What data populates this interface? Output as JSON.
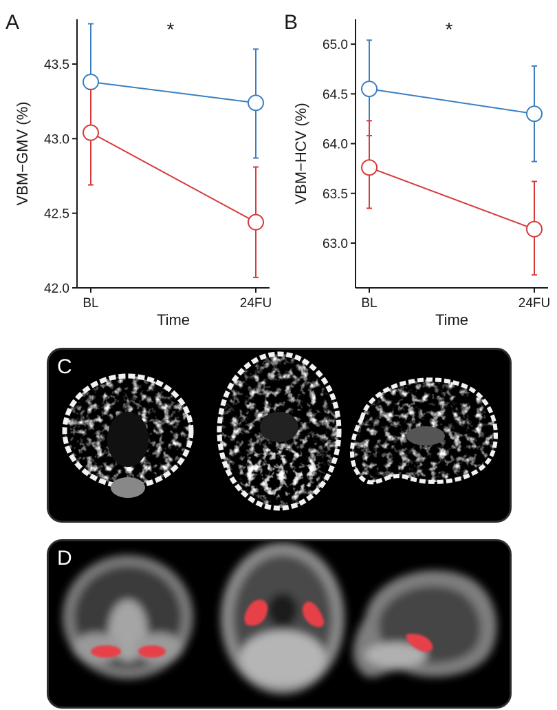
{
  "chart_data": [
    {
      "panel": "A",
      "type": "line",
      "ylabel": "VBM−GMV (%)",
      "xlabel": "Time",
      "categories": [
        "BL",
        "24FU"
      ],
      "ylim": [
        42.0,
        43.8
      ],
      "yticks": [
        "42.0",
        "42.5",
        "43.0",
        "43.5"
      ],
      "annotation": "*",
      "series": [
        {
          "color": "#3a7fc1",
          "values": [
            43.38,
            43.24
          ],
          "err_low": [
            43.0,
            42.87
          ],
          "err_high": [
            43.77,
            43.6
          ]
        },
        {
          "color": "#d63a3a",
          "values": [
            43.04,
            42.44
          ],
          "err_low": [
            42.69,
            42.07
          ],
          "err_high": [
            43.33,
            42.81
          ]
        }
      ]
    },
    {
      "panel": "B",
      "type": "line",
      "ylabel": "VBM−HCV (%)",
      "xlabel": "Time",
      "categories": [
        "BL",
        "24FU"
      ],
      "ylim": [
        62.55,
        65.25
      ],
      "yticks": [
        "63.0",
        "63.5",
        "64.0",
        "64.5",
        "65.0"
      ],
      "annotation": "*",
      "series": [
        {
          "color": "#3a7fc1",
          "values": [
            64.55,
            64.3
          ],
          "err_low": [
            64.08,
            63.82
          ],
          "err_high": [
            65.04,
            64.78
          ]
        },
        {
          "color": "#d63a3a",
          "values": [
            63.76,
            63.14
          ],
          "err_low": [
            63.35,
            62.68
          ],
          "err_high": [
            64.23,
            63.62
          ]
        }
      ]
    }
  ],
  "images": {
    "panel_c": {
      "label": "C",
      "description_views": [
        "coronal",
        "axial",
        "sagittal"
      ],
      "overlay_color": "#ffffff"
    },
    "panel_d": {
      "label": "D",
      "description_views": [
        "coronal",
        "axial",
        "sagittal"
      ],
      "overlay_color": "#e8404a"
    }
  }
}
